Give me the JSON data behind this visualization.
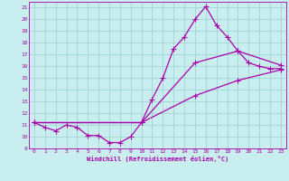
{
  "xlabel": "Windchill (Refroidissement éolien,°C)",
  "background_color": "#c8eef0",
  "grid_color": "#9ecdd0",
  "line_color": "#aa00aa",
  "xlim": [
    -0.5,
    23.5
  ],
  "ylim": [
    9,
    21.5
  ],
  "yticks": [
    9,
    10,
    11,
    12,
    13,
    14,
    15,
    16,
    17,
    18,
    19,
    20,
    21
  ],
  "xticks": [
    0,
    1,
    2,
    3,
    4,
    5,
    6,
    7,
    8,
    9,
    10,
    11,
    12,
    13,
    14,
    15,
    16,
    17,
    18,
    19,
    20,
    21,
    22,
    23
  ],
  "line1_x": [
    0,
    1,
    2,
    3,
    4,
    5,
    6,
    7,
    8,
    9,
    10,
    11,
    12,
    13,
    14,
    15,
    16,
    17,
    18,
    19,
    20,
    21,
    22,
    23
  ],
  "line1_y": [
    11.2,
    10.8,
    10.5,
    11.0,
    10.8,
    10.1,
    10.1,
    9.5,
    9.5,
    10.0,
    11.2,
    13.2,
    15.0,
    17.5,
    18.5,
    20.0,
    21.1,
    19.5,
    18.5,
    17.3,
    16.3,
    16.0,
    15.8,
    15.8
  ],
  "line2_x": [
    0,
    10,
    15,
    19,
    23
  ],
  "line2_y": [
    11.2,
    11.2,
    16.3,
    17.3,
    16.1
  ],
  "line3_x": [
    0,
    10,
    15,
    19,
    23
  ],
  "line3_y": [
    11.2,
    11.2,
    13.5,
    14.8,
    15.7
  ],
  "marker": "+",
  "markersize": 4,
  "linewidth": 0.9
}
